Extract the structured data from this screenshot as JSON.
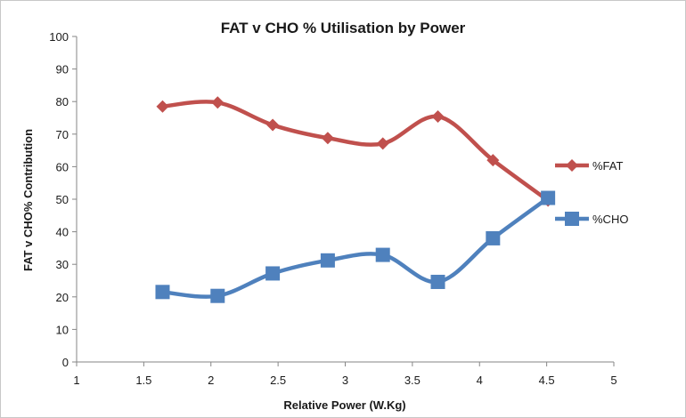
{
  "chart_data": {
    "type": "line",
    "title": "FAT v CHO % Utilisation by Power",
    "xlabel": "Relative Power (W.Kg)",
    "ylabel": "FAT v CHO% Contribution",
    "xlim": [
      1,
      5
    ],
    "ylim": [
      0,
      100
    ],
    "x_ticks": [
      "1",
      "1.5",
      "2",
      "2.5",
      "3",
      "3.5",
      "4",
      "4.5",
      "5"
    ],
    "y_ticks": [
      "0",
      "10",
      "20",
      "30",
      "40",
      "50",
      "60",
      "70",
      "80",
      "90",
      "100"
    ],
    "grid": false,
    "legend_position": "right",
    "series": [
      {
        "name": "%FAT",
        "color": "#c0504d",
        "marker": "diamond",
        "x": [
          1.64,
          2.05,
          2.46,
          2.87,
          3.28,
          3.69,
          4.1,
          4.51
        ],
        "y": [
          78.5,
          79.7,
          72.8,
          68.8,
          67.1,
          75.4,
          62.0,
          49.6
        ]
      },
      {
        "name": "%CHO",
        "color": "#4f81bd",
        "marker": "square",
        "x": [
          1.64,
          2.05,
          2.46,
          2.87,
          3.28,
          3.69,
          4.1,
          4.51
        ],
        "y": [
          21.5,
          20.3,
          27.2,
          31.2,
          32.9,
          24.6,
          38.0,
          50.4
        ]
      }
    ]
  }
}
